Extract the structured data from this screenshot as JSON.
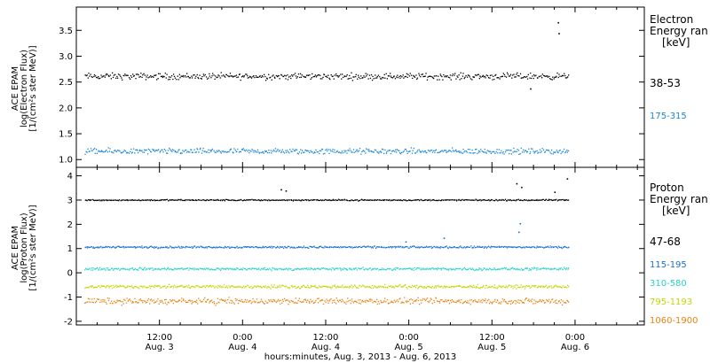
{
  "chart_data": [
    {
      "type": "scatter",
      "panel": "electron",
      "ylabel": [
        "ACE EPAM",
        "log(Electron Flux)",
        "[1/(cm²s ster MeV)]"
      ],
      "ylim": [
        0.85,
        3.95
      ],
      "yticks": [
        1.0,
        1.5,
        2.0,
        2.5,
        3.0,
        3.5
      ],
      "ytick_labels": [
        "1.0",
        "1.5",
        "2.0",
        "2.5",
        "3.0",
        "3.5"
      ],
      "legend_title": [
        "Electron",
        "Energy ran",
        "[keV]"
      ],
      "series": [
        {
          "name": "38-53",
          "color": "#000000",
          "mean": 2.62,
          "spread": 0.09,
          "spikes": [
            {
              "hour": 69.5,
              "value": 3.66
            },
            {
              "hour": 69.6,
              "value": 3.45
            },
            {
              "hour": 65.5,
              "value": 2.38
            }
          ]
        },
        {
          "name": "175-315",
          "color": "#1a86d8",
          "mean": 1.17,
          "spread": 0.08,
          "spikes": []
        }
      ]
    },
    {
      "type": "scatter",
      "panel": "proton",
      "ylabel": [
        "ACE EPAM",
        "log(Proton Flux)",
        "[1/(cm²s ster MeV)]"
      ],
      "ylim": [
        -2.15,
        4.35
      ],
      "yticks": [
        -2,
        -1,
        0,
        1,
        2,
        3,
        4
      ],
      "ytick_labels": [
        "-2",
        "-1",
        "0",
        "1",
        "2",
        "3",
        "4"
      ],
      "legend_title": [
        "Proton",
        "Energy ran",
        "[keV]"
      ],
      "series": [
        {
          "name": "47-68",
          "color": "#000000",
          "mean": 3.02,
          "spread": 0.04,
          "spikes": [
            {
              "hour": 29.5,
              "value": 3.45
            },
            {
              "hour": 30.2,
              "value": 3.4
            },
            {
              "hour": 63.5,
              "value": 3.7
            },
            {
              "hour": 64.2,
              "value": 3.55
            },
            {
              "hour": 69.0,
              "value": 3.35
            },
            {
              "hour": 70.8,
              "value": 3.9
            }
          ]
        },
        {
          "name": "115-195",
          "color": "#1a6fd0",
          "mean": 1.08,
          "spread": 0.06,
          "spikes": [
            {
              "hour": 63.8,
              "value": 1.7
            },
            {
              "hour": 64.0,
              "value": 2.05
            },
            {
              "hour": 53.0,
              "value": 1.45
            },
            {
              "hour": 47.5,
              "value": 1.3
            }
          ]
        },
        {
          "name": "310-580",
          "color": "#27d1c8",
          "mean": 0.18,
          "spread": 0.08,
          "spikes": []
        },
        {
          "name": "795-1193",
          "color": "#c5d400",
          "mean": -0.55,
          "spread": 0.1,
          "spikes": []
        },
        {
          "name": "1060-1900",
          "color": "#e8820e",
          "mean": -1.15,
          "spread": 0.18,
          "spikes": []
        }
      ]
    }
  ],
  "x_axis": {
    "range_hours": [
      0,
      82
    ],
    "data_end_hour": 71,
    "ticks": [
      {
        "hour": 12,
        "label1": "12:00",
        "label2": "Aug. 3"
      },
      {
        "hour": 24,
        "label1": "0:00",
        "label2": "Aug. 4"
      },
      {
        "hour": 36,
        "label1": "12:00",
        "label2": "Aug. 4"
      },
      {
        "hour": 48,
        "label1": "0:00",
        "label2": "Aug. 5"
      },
      {
        "hour": 60,
        "label1": "12:00",
        "label2": "Aug. 5"
      },
      {
        "hour": 72,
        "label1": "0:00",
        "label2": "Aug. 6"
      }
    ],
    "xlabel": "hours:minutes, Aug.  3, 2013 - Aug.  6, 2013"
  }
}
